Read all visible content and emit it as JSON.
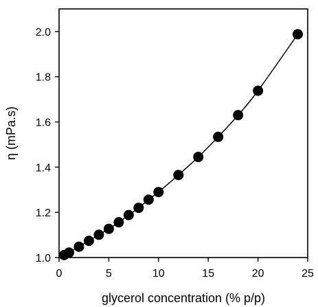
{
  "chart_data": {
    "type": "scatter",
    "title": "",
    "xlabel": "glycerol concentration (% p/p)",
    "ylabel": "η (mPa.s)",
    "xlim": [
      0,
      25
    ],
    "ylim": [
      1.0,
      2.1
    ],
    "xticks": [
      0,
      5,
      10,
      15,
      20,
      25
    ],
    "xtick_labels": [
      "0",
      "5",
      "10",
      "15",
      "20",
      "25"
    ],
    "yticks": [
      1.0,
      1.2,
      1.4,
      1.6,
      1.8,
      2.0
    ],
    "ytick_labels": [
      "1.0",
      "1.2",
      "1.4",
      "1.6",
      "1.8",
      "2.0"
    ],
    "grid": false,
    "legend": "none",
    "series": [
      {
        "marker": "filled-circle",
        "color": "#000000",
        "points": [
          [
            0.5,
            1.011
          ],
          [
            1,
            1.022
          ],
          [
            2,
            1.048
          ],
          [
            3,
            1.074
          ],
          [
            4,
            1.101
          ],
          [
            5,
            1.127
          ],
          [
            6,
            1.156
          ],
          [
            7,
            1.188
          ],
          [
            8,
            1.22
          ],
          [
            9,
            1.256
          ],
          [
            10,
            1.29
          ],
          [
            12,
            1.365
          ],
          [
            14,
            1.445
          ],
          [
            16,
            1.534
          ],
          [
            18,
            1.63
          ],
          [
            20,
            1.738
          ],
          [
            24,
            1.988
          ]
        ]
      }
    ],
    "fit_line": {
      "color": "#000000",
      "smooth": true
    }
  }
}
